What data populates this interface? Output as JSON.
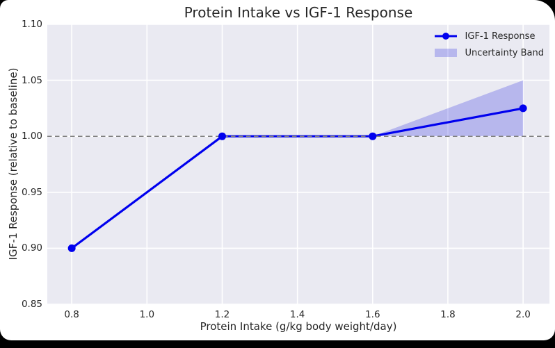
{
  "window": {
    "background": "#000000",
    "card_background": "#ffffff"
  },
  "chart_data": {
    "type": "line",
    "title": "Protein Intake vs IGF-1 Response",
    "xlabel": "Protein Intake (g/kg body weight/day)",
    "ylabel": "IGF-1 Response (relative to baseline)",
    "xlim": [
      0.735,
      2.07
    ],
    "ylim": [
      0.85,
      1.1
    ],
    "xticks": [
      0.8,
      1.0,
      1.2,
      1.4,
      1.6,
      1.8,
      2.0
    ],
    "xtick_labels": [
      "0.8",
      "1.0",
      "1.2",
      "1.4",
      "1.6",
      "1.8",
      "2.0"
    ],
    "yticks": [
      0.85,
      0.9,
      0.95,
      1.0,
      1.05,
      1.1
    ],
    "ytick_labels": [
      "0.85",
      "0.90",
      "0.95",
      "1.00",
      "1.05",
      "1.10"
    ],
    "grid": true,
    "series": [
      {
        "name": "IGF-1 Response",
        "x": [
          0.8,
          1.2,
          1.6,
          2.0
        ],
        "y": [
          0.9,
          1.0,
          1.0,
          1.025
        ],
        "color": "#0000ee",
        "marker": "circle",
        "marker_radius": 5.5,
        "line_width": 3.2
      }
    ],
    "band": {
      "name": "Uncertainty Band",
      "x": [
        1.6,
        2.0
      ],
      "lower": [
        1.0,
        1.0
      ],
      "upper": [
        1.0,
        1.05
      ],
      "fill": "#1515dd",
      "opacity": 0.24
    },
    "reference_line": {
      "y": 1.0,
      "style": "dashed",
      "color": "#808080"
    },
    "legend": {
      "position": "upper right",
      "entries": [
        {
          "label": "IGF-1 Response",
          "handle": "line-marker"
        },
        {
          "label": "Uncertainty Band",
          "handle": "patch"
        }
      ]
    },
    "colors": {
      "plot_background": "#eaeaf2",
      "grid": "#ffffff",
      "text": "#262626"
    }
  }
}
